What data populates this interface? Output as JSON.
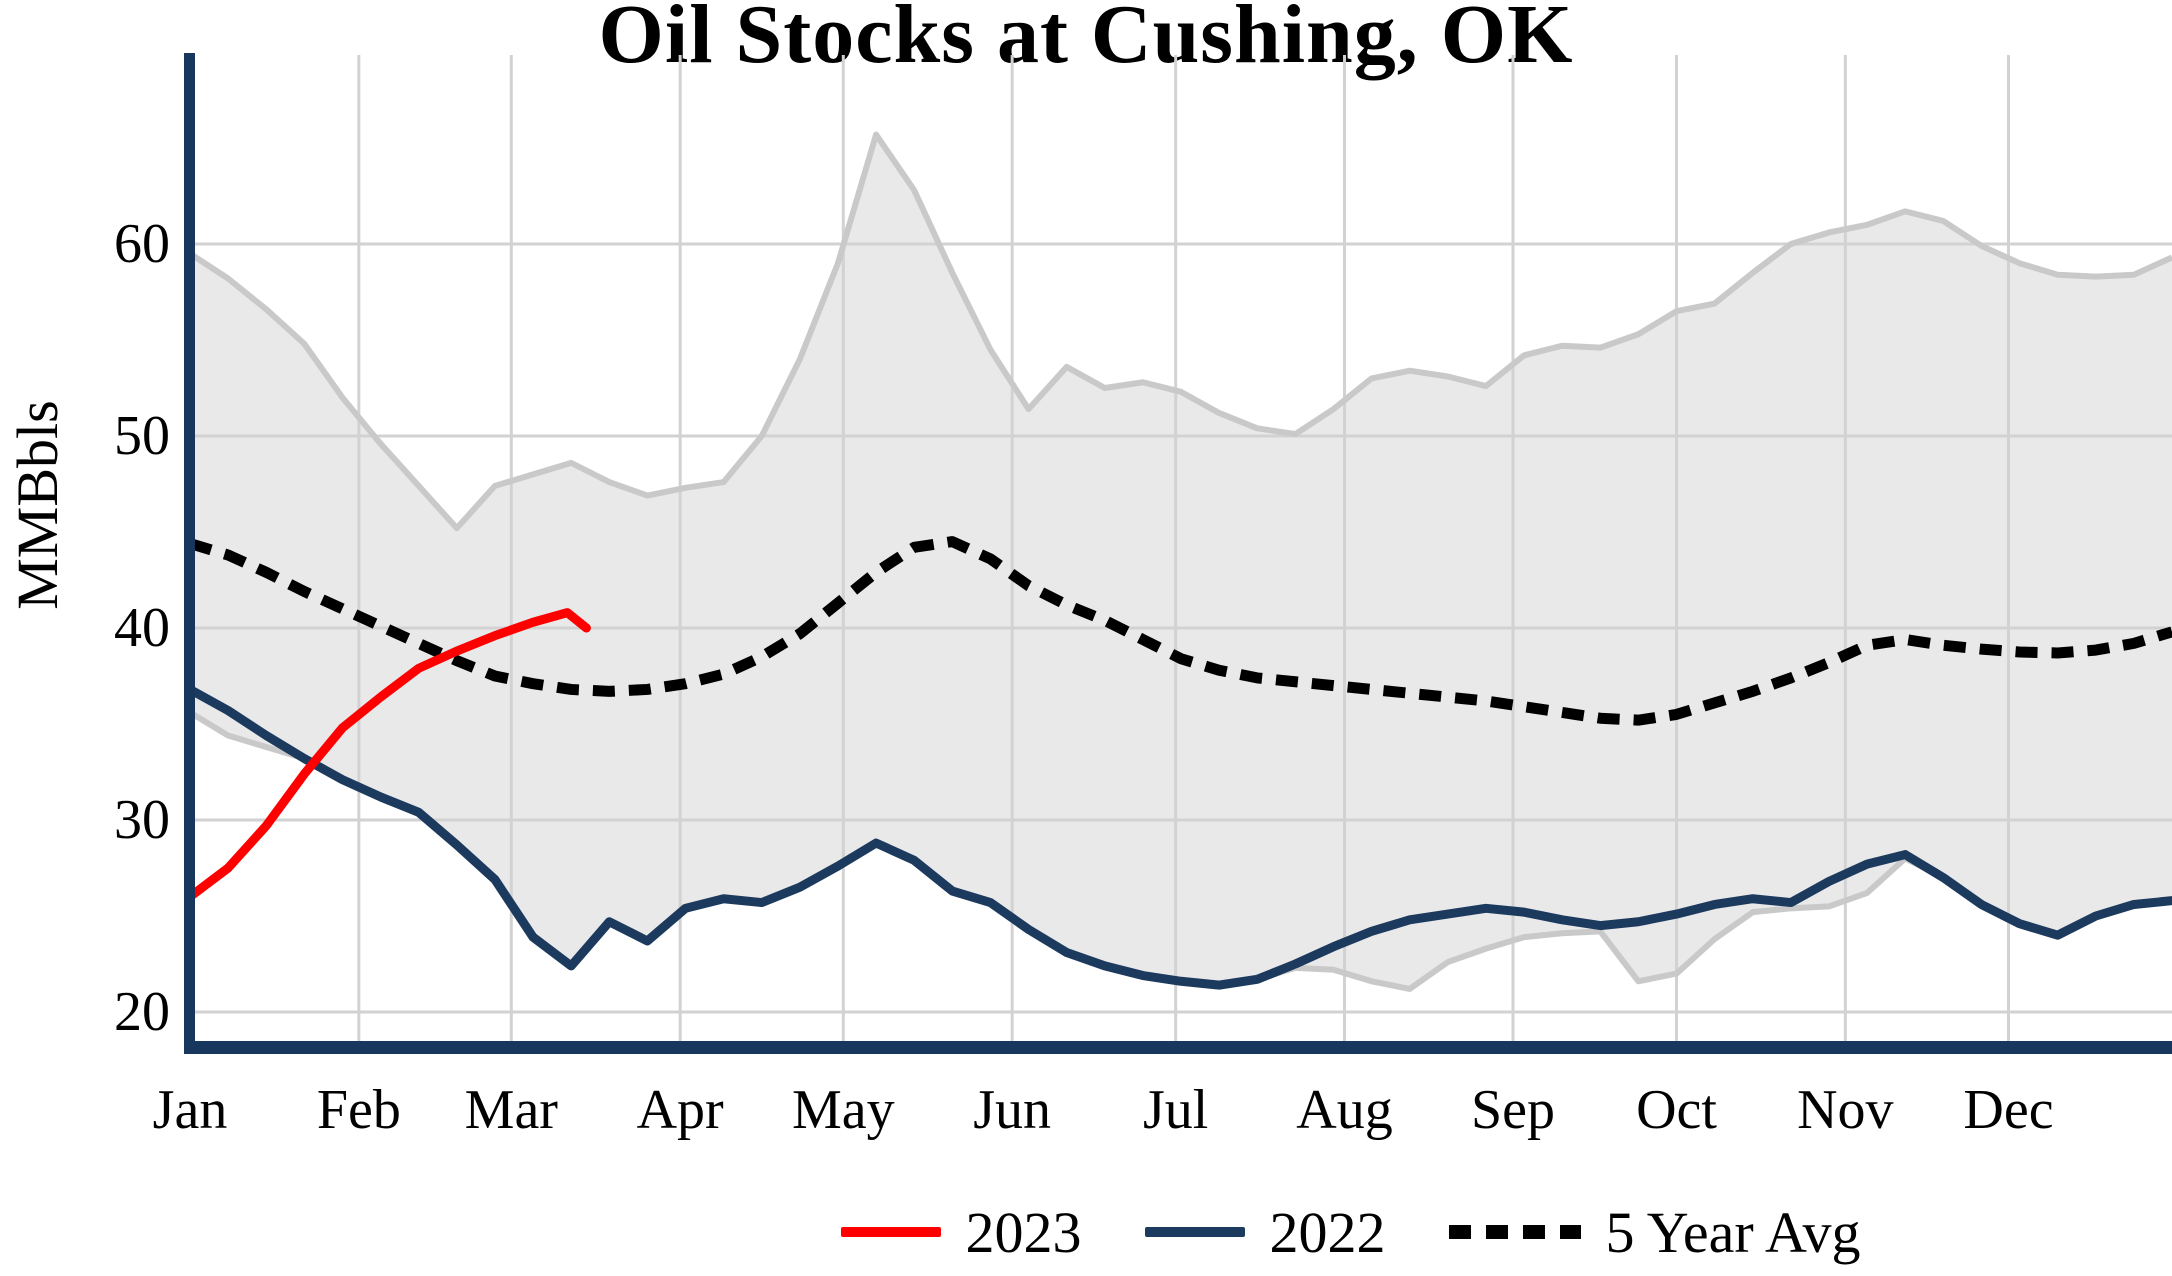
{
  "title": "Oil Stocks at Cushing, OK",
  "y_axis": {
    "label": "MMBbls",
    "ticks": [
      20,
      30,
      40,
      50,
      60
    ]
  },
  "x_axis": {
    "labels": [
      "Jan",
      "Feb",
      "Mar",
      "Apr",
      "May",
      "Jun",
      "Jul",
      "Aug",
      "Sep",
      "Oct",
      "Nov",
      "Dec"
    ],
    "month_start_weeks": [
      0,
      4.43,
      8.43,
      12.86,
      17.14,
      21.57,
      25.86,
      30.29,
      34.71,
      39.0,
      43.43,
      47.71
    ]
  },
  "legend": [
    {
      "label": "2023",
      "color": "#fe0000",
      "style": "solid"
    },
    {
      "label": "2022",
      "color": "#1c3a5e",
      "style": "solid"
    },
    {
      "label": "5 Year Avg",
      "color": "#000000",
      "style": "dotted"
    }
  ],
  "colors": {
    "accent_red": "#fe0000",
    "navy": "#1c3a5e",
    "spine_navy": "#17375e",
    "gridline": "#d2d2d2",
    "band_fill": "#e9e9e9",
    "band_edge": "#c9c9c9",
    "dotted": "#000000"
  },
  "chart_data": {
    "type": "line",
    "title": "Oil Stocks at Cushing, OK",
    "ylabel": "MMBbls",
    "ylim": [
      18.3,
      69.6
    ],
    "x_unit": "week_of_year (0 = Jan 1, 52 = Dec 31)",
    "grid": true,
    "legend_position": "bottom",
    "band_note": "gray band is the 5-year min-max range; its bottom edge coincides with the 2022 line from late Jan through mid-Jul and Nov-Dec",
    "series": [
      {
        "name": "2023",
        "role": "line",
        "color": "#fe0000",
        "x": [
          0,
          1,
          2,
          3,
          4,
          5,
          6,
          7,
          8,
          9,
          9.9,
          10.4
        ],
        "values": [
          26.0,
          27.5,
          29.7,
          32.4,
          34.8,
          36.4,
          37.9,
          38.8,
          39.6,
          40.3,
          40.8,
          40.0
        ]
      },
      {
        "name": "2022",
        "role": "line",
        "color": "#1c3a5e",
        "values": [
          36.8,
          35.7,
          34.4,
          33.2,
          32.1,
          31.2,
          30.4,
          28.7,
          26.9,
          23.9,
          22.4,
          24.7,
          23.7,
          25.4,
          25.9,
          25.7,
          26.5,
          27.6,
          28.8,
          27.9,
          26.3,
          25.7,
          24.3,
          23.1,
          22.4,
          21.9,
          21.6,
          21.4,
          21.7,
          22.5,
          23.4,
          24.2,
          24.8,
          25.1,
          25.4,
          25.2,
          24.8,
          24.5,
          24.7,
          25.1,
          25.6,
          25.9,
          25.7,
          26.8,
          27.7,
          28.2,
          27.0,
          25.6,
          24.6,
          24.0,
          25.0,
          25.6,
          25.8
        ]
      },
      {
        "name": "5 Year Avg",
        "role": "line",
        "style": "dotted",
        "color": "#000000",
        "values": [
          44.4,
          43.8,
          42.9,
          41.9,
          41.0,
          40.1,
          39.2,
          38.3,
          37.5,
          37.1,
          36.8,
          36.7,
          36.8,
          37.1,
          37.6,
          38.5,
          39.7,
          41.3,
          42.9,
          44.2,
          44.5,
          43.6,
          42.2,
          41.2,
          40.4,
          39.4,
          38.4,
          37.8,
          37.4,
          37.2,
          37.0,
          36.8,
          36.6,
          36.4,
          36.2,
          35.9,
          35.6,
          35.3,
          35.2,
          35.5,
          36.1,
          36.7,
          37.4,
          38.2,
          39.1,
          39.4,
          39.1,
          38.9,
          38.75,
          38.7,
          38.85,
          39.2,
          39.8
        ]
      },
      {
        "name": "5 Year Range Max",
        "role": "band_upper",
        "color": "#c9c9c9",
        "values": [
          59.5,
          58.2,
          56.6,
          54.8,
          52.0,
          49.6,
          47.4,
          45.2,
          47.4,
          48.0,
          48.6,
          47.6,
          46.9,
          47.3,
          47.6,
          50.0,
          54.0,
          59.0,
          65.7,
          62.8,
          58.5,
          54.5,
          51.4,
          53.6,
          52.5,
          52.8,
          52.3,
          51.2,
          50.4,
          50.1,
          51.4,
          53.0,
          53.4,
          53.1,
          52.6,
          54.2,
          54.7,
          54.6,
          55.3,
          56.5,
          56.9,
          58.5,
          60.0,
          60.6,
          61.0,
          61.7,
          61.2,
          59.9,
          59.0,
          58.4,
          58.3,
          58.4,
          59.3
        ]
      },
      {
        "name": "5 Year Range Min",
        "role": "band_lower",
        "color": "#c9c9c9",
        "values": [
          35.6,
          34.4,
          33.8,
          33.2,
          32.1,
          31.2,
          30.4,
          28.7,
          26.9,
          23.9,
          22.4,
          24.7,
          23.7,
          25.4,
          25.9,
          25.7,
          26.5,
          27.6,
          28.8,
          27.9,
          26.3,
          25.7,
          24.3,
          23.1,
          22.4,
          21.9,
          21.6,
          21.4,
          21.7,
          22.3,
          22.2,
          21.6,
          21.2,
          22.6,
          23.3,
          23.9,
          24.1,
          24.2,
          21.6,
          22.0,
          23.8,
          25.2,
          25.4,
          25.5,
          26.2,
          28.0,
          27.0,
          25.6,
          24.6,
          24.0,
          25.0,
          25.6,
          25.8
        ]
      }
    ]
  }
}
